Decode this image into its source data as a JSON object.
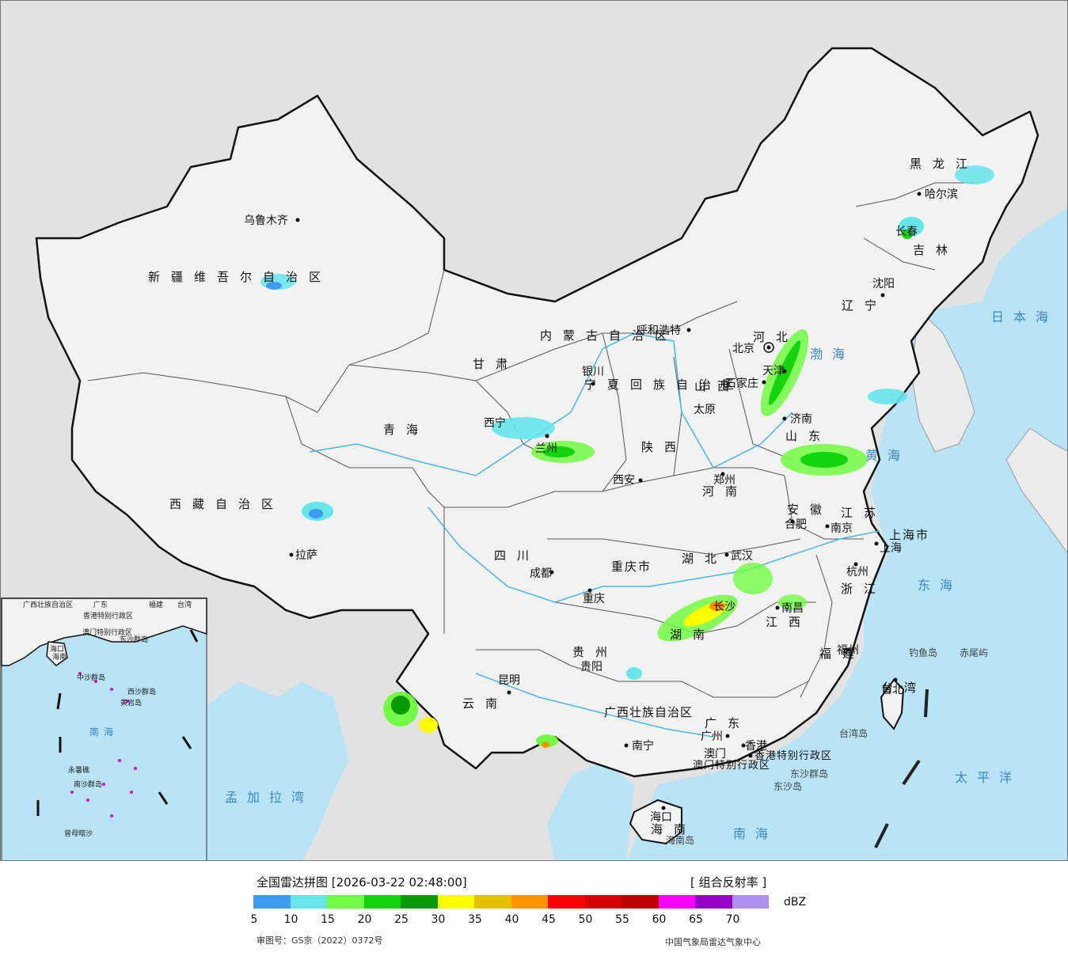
{
  "map": {
    "colors": {
      "land": "#f2f2f2",
      "outside": "#e2e2e2",
      "sea": "#b9e3f7",
      "border": "#111111",
      "river": "#49b6ea"
    },
    "cities": [
      {
        "id": "urumqi",
        "label": "乌鲁木齐"
      },
      {
        "id": "lhasa",
        "label": "拉萨"
      },
      {
        "id": "xining",
        "label": "西宁"
      },
      {
        "id": "lanzhou",
        "label": "兰州"
      },
      {
        "id": "yinchuan",
        "label": "银川"
      },
      {
        "id": "hohhot",
        "label": "呼和浩特"
      },
      {
        "id": "beijing",
        "label": "北京"
      },
      {
        "id": "tianjin",
        "label": "天津"
      },
      {
        "id": "shijiazhuang",
        "label": "石家庄"
      },
      {
        "id": "taiyuan",
        "label": "太原"
      },
      {
        "id": "jinan",
        "label": "济南"
      },
      {
        "id": "zhengzhou",
        "label": "郑州"
      },
      {
        "id": "xian",
        "label": "西安"
      },
      {
        "id": "chengdu",
        "label": "成都"
      },
      {
        "id": "chongqing",
        "label": "重庆"
      },
      {
        "id": "wuhan",
        "label": "武汉"
      },
      {
        "id": "hefei",
        "label": "合肥"
      },
      {
        "id": "nanjing",
        "label": "南京"
      },
      {
        "id": "shanghai",
        "label": "上海"
      },
      {
        "id": "hangzhou",
        "label": "杭州"
      },
      {
        "id": "nanchang",
        "label": "南昌"
      },
      {
        "id": "changsha",
        "label": "长沙"
      },
      {
        "id": "fuzhou",
        "label": "福州"
      },
      {
        "id": "taibei",
        "label": "台北"
      },
      {
        "id": "guiyang",
        "label": "贵阳"
      },
      {
        "id": "kunming",
        "label": "昆明"
      },
      {
        "id": "nanning",
        "label": "南宁"
      },
      {
        "id": "guangzhou",
        "label": "广州"
      },
      {
        "id": "xianggang",
        "label": "香港"
      },
      {
        "id": "aomen",
        "label": "澳门"
      },
      {
        "id": "haikou",
        "label": "海口"
      },
      {
        "id": "shenyang",
        "label": "沈阳"
      },
      {
        "id": "changchun",
        "label": "长春"
      },
      {
        "id": "haerbin",
        "label": "哈尔滨"
      }
    ],
    "provinces": [
      {
        "id": "xinjiang",
        "label": "新疆维吾尔自治区"
      },
      {
        "id": "xizang",
        "label": "西藏自治区"
      },
      {
        "id": "qinghai",
        "label": "青海"
      },
      {
        "id": "gansu",
        "label": "甘肃"
      },
      {
        "id": "nmg",
        "label": "内蒙古自治区"
      },
      {
        "id": "ningxia",
        "label": "宁夏回族自治区"
      },
      {
        "id": "shaanxi",
        "label": "陕西"
      },
      {
        "id": "shanxi",
        "label": "山西"
      },
      {
        "id": "hebei",
        "label": "河北"
      },
      {
        "id": "henan",
        "label": "河南"
      },
      {
        "id": "shandong",
        "label": "山东"
      },
      {
        "id": "sichuan",
        "label": "四川"
      },
      {
        "id": "chongqingshi",
        "label": "重庆市"
      },
      {
        "id": "hubei",
        "label": "湖北"
      },
      {
        "id": "hunan",
        "label": "湖南"
      },
      {
        "id": "anhui",
        "label": "安徽"
      },
      {
        "id": "jiangsu",
        "label": "江苏"
      },
      {
        "id": "shanghaishi",
        "label": "上海市"
      },
      {
        "id": "zhejiang",
        "label": "浙江"
      },
      {
        "id": "jiangxi",
        "label": "江西"
      },
      {
        "id": "fujian",
        "label": "福建"
      },
      {
        "id": "taiwan",
        "label": "台湾"
      },
      {
        "id": "guizhou",
        "label": "贵州"
      },
      {
        "id": "yunnan",
        "label": "云南"
      },
      {
        "id": "guangxi",
        "label": "广西壮族自治区"
      },
      {
        "id": "guangdong",
        "label": "广东"
      },
      {
        "id": "hainan",
        "label": "海南"
      },
      {
        "id": "liaoning",
        "label": "辽宁"
      },
      {
        "id": "jilin",
        "label": "吉林"
      },
      {
        "id": "heilongjiang",
        "label": "黑龙江"
      },
      {
        "id": "xgtbxzq",
        "label": "香港特别行政区"
      },
      {
        "id": "amtbxzq",
        "label": "澳门特别行政区"
      }
    ],
    "seas": [
      {
        "id": "bohai",
        "label": "渤海"
      },
      {
        "id": "huanghai",
        "label": "黄海"
      },
      {
        "id": "donghai",
        "label": "东海"
      },
      {
        "id": "nanhai",
        "label": "南海"
      },
      {
        "id": "taipingyang",
        "label": "太平洋"
      },
      {
        "id": "ribenhai",
        "label": "日本海"
      },
      {
        "id": "mengjialawan",
        "label": "孟加拉湾"
      }
    ],
    "islands": [
      {
        "id": "diaoyudao",
        "label": "钓鱼岛"
      },
      {
        "id": "chiweiyu",
        "label": "赤尾屿"
      },
      {
        "id": "taiwandao",
        "label": "台湾岛"
      },
      {
        "id": "dongshaqundao",
        "label": "东沙群岛"
      },
      {
        "id": "dongshadao",
        "label": "东沙岛"
      },
      {
        "id": "hainandao",
        "label": "海南岛"
      }
    ],
    "inset": {
      "labels": [
        "广西壮族自治区",
        "广东",
        "福建",
        "台湾",
        "海口",
        "海南",
        "香港特别行政区",
        "澳门特别行政区",
        "东沙群岛",
        "中沙群岛",
        "黄岩岛",
        "西沙群岛",
        "南沙群岛",
        "永暑礁",
        "曾母暗沙"
      ],
      "sea": "南海"
    }
  },
  "legend": {
    "title": "全国雷达拼图 [2026-03-22 02:48:00]",
    "product": "[ 组合反射率 ]",
    "unit": "dBZ",
    "ticks": [
      "5",
      "10",
      "15",
      "20",
      "25",
      "30",
      "35",
      "40",
      "45",
      "50",
      "55",
      "60",
      "65",
      "70"
    ],
    "colors": [
      "#3d9bf0",
      "#66e5eb",
      "#72fc43",
      "#13d40d",
      "#0a9a08",
      "#fdfd00",
      "#e6c100",
      "#ff9400",
      "#fe0000",
      "#d80000",
      "#bc0000",
      "#f700f7",
      "#9400c5",
      "#ad90f0"
    ],
    "approval": "审图号：GS京（2022）0372号",
    "source": "中国气象局雷达气象中心"
  }
}
